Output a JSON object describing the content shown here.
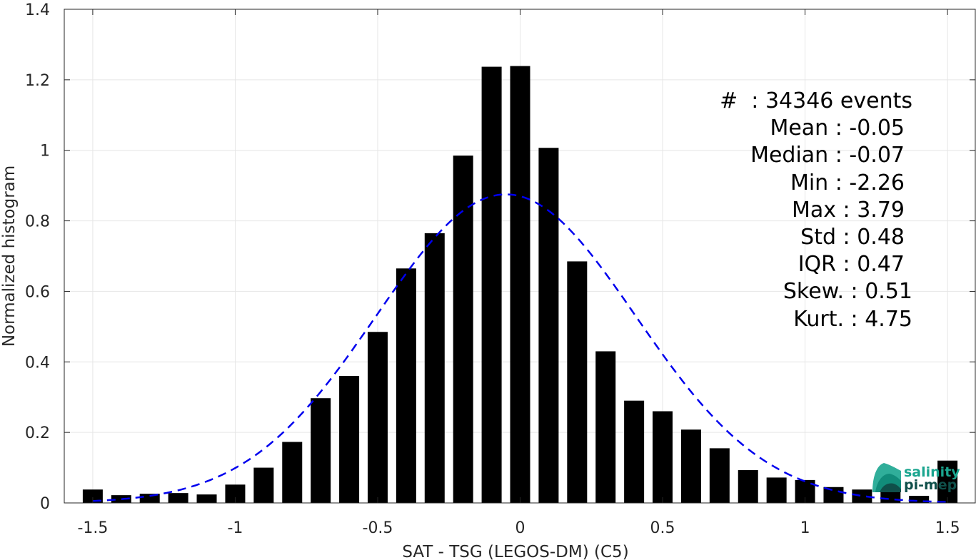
{
  "chart_data": {
    "type": "bar",
    "xlabel": "SAT - TSG (LEGOS-DM) (C5)",
    "ylabel": "Normalized histogram",
    "xlim": [
      -1.6,
      1.6
    ],
    "ylim": [
      0,
      1.4
    ],
    "xticks": [
      -1.5,
      -1,
      -0.5,
      0,
      0.5,
      1,
      1.5
    ],
    "xtick_labels": [
      "-1.5",
      "-1",
      "-0.5",
      "0",
      "0.5",
      "1",
      "1.5"
    ],
    "yticks": [
      0,
      0.2,
      0.4,
      0.6,
      0.8,
      1,
      1.2,
      1.4
    ],
    "ytick_labels": [
      "0",
      "0.2",
      "0.4",
      "0.6",
      "0.8",
      "1",
      "1.2",
      "1.4"
    ],
    "grid": true,
    "bar_color": "#000000",
    "bins": {
      "centers": [
        -1.5,
        -1.4,
        -1.3,
        -1.2,
        -1.1,
        -1.0,
        -0.9,
        -0.8,
        -0.7,
        -0.6,
        -0.5,
        -0.4,
        -0.3,
        -0.2,
        -0.1,
        0.0,
        0.1,
        0.2,
        0.3,
        0.4,
        0.5,
        0.6,
        0.7,
        0.8,
        0.9,
        1.0,
        1.1,
        1.2,
        1.3,
        1.4,
        1.5
      ],
      "values": [
        0.038,
        0.022,
        0.026,
        0.028,
        0.024,
        0.052,
        0.1,
        0.173,
        0.297,
        0.36,
        0.485,
        0.665,
        0.765,
        0.985,
        1.237,
        1.239,
        1.007,
        0.685,
        0.43,
        0.29,
        0.26,
        0.208,
        0.155,
        0.093,
        0.072,
        0.065,
        0.045,
        0.038,
        0.032,
        0.02,
        0.12
      ]
    },
    "gaussian_fit": {
      "mean": -0.05,
      "std": 0.455,
      "peak": 0.875,
      "color": "#0000ee",
      "style": "dashed"
    }
  },
  "stats": [
    {
      "label": "#  : 34346 events"
    },
    {
      "label": "Mean : -0.05"
    },
    {
      "label": "Median : -0.07"
    },
    {
      "label": "Min : -2.26"
    },
    {
      "label": "Max : 3.79"
    },
    {
      "label": "Std : 0.48"
    },
    {
      "label": "IQR : 0.47"
    },
    {
      "label": "Skew. : 0.51"
    },
    {
      "label": "Kurt. : 4.75"
    }
  ],
  "logo": {
    "line1": "salinity",
    "line2": "pi-mep",
    "color_primary": "#1aa58f",
    "color_dark": "#0f4f4a"
  }
}
